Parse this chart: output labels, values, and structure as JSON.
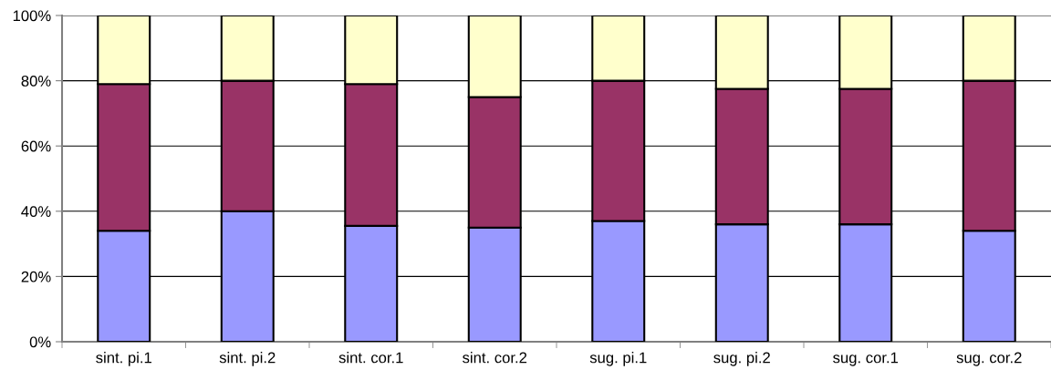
{
  "chart_data": {
    "type": "bar",
    "stacked": true,
    "categories": [
      "sint. pi.1",
      "sint. pi.2",
      "sint. cor.1",
      "sint. cor.2",
      "sug. pi.1",
      "sug. pi.2",
      "sug. cor.1",
      "sug. cor.2"
    ],
    "series": [
      {
        "color": "#9999ff",
        "values": [
          34,
          40,
          35.5,
          35,
          37,
          36,
          36,
          34
        ]
      },
      {
        "color": "#993366",
        "values": [
          45,
          40,
          43.5,
          40,
          43,
          41.5,
          41.5,
          46
        ]
      },
      {
        "color": "#ffffcc",
        "values": [
          21,
          20,
          21,
          25,
          20,
          22.5,
          22.5,
          20
        ]
      }
    ],
    "ylim": [
      0,
      100
    ],
    "yticks": [
      {
        "value": 0,
        "label": "0%"
      },
      {
        "value": 20,
        "label": "20%"
      },
      {
        "value": 40,
        "label": "40%"
      },
      {
        "value": 60,
        "label": "60%"
      },
      {
        "value": 80,
        "label": "80%"
      },
      {
        "value": 100,
        "label": "100%"
      }
    ],
    "grid": "y"
  }
}
